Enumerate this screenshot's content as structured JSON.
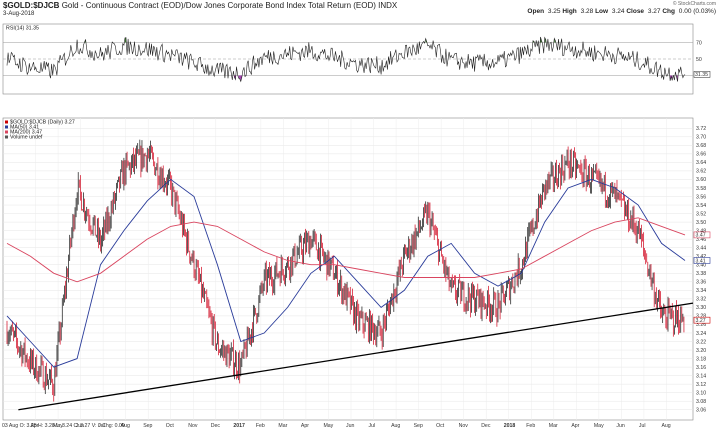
{
  "header": {
    "symbol": "$GOLD:$DJCB",
    "description": "Gold - Continuous Contract (EOD)/Dow Jones Corporate Bond Index Total Return (EOD)",
    "exchange": "INDX",
    "date": "3-Aug-2018",
    "open_label": "Open",
    "open": "3.25",
    "high_label": "High",
    "high": "3.28",
    "low_label": "Low",
    "low": "3.24",
    "close_label": "Close",
    "close": "3.27",
    "chg_label": "Chg",
    "chg": "0.00 (0.03%)",
    "credit": "© StockCharts.com"
  },
  "rsi_panel": {
    "label": "RSI(14) 31.35",
    "levels": [
      "70",
      "50",
      "30"
    ],
    "last_value": "31.35"
  },
  "price_panel": {
    "legend": [
      {
        "text": "$GOLD:$DJCB (Daily) 3.27",
        "color": "#cc0000",
        "icon": "price-line-icon"
      },
      {
        "text": "MA(50) 3.41",
        "color": "#2a3c9a",
        "icon": "ma50-line-icon"
      },
      {
        "text": "MA(200) 3.47",
        "color": "#d9455f",
        "icon": "ma200-line-icon"
      },
      {
        "text": "Volume undef",
        "color": "#555555",
        "icon": "volume-icon"
      }
    ],
    "yticks": [
      "3.72",
      "3.70",
      "3.68",
      "3.66",
      "3.64",
      "3.62",
      "3.60",
      "3.58",
      "3.56",
      "3.54",
      "3.52",
      "3.50",
      "3.48",
      "3.46",
      "3.44",
      "3.42",
      "3.40",
      "3.38",
      "3.36",
      "3.34",
      "3.32",
      "3.30",
      "3.28",
      "3.26",
      "3.24",
      "3.22",
      "3.20",
      "3.18",
      "3.16",
      "3.14",
      "3.12",
      "3.10",
      "3.08",
      "3.06"
    ],
    "xticks": [
      "Apr",
      "May",
      "Jun",
      "Jul",
      "Aug",
      "Sep",
      "Oct",
      "Nov",
      "Dec",
      "2017",
      "Feb",
      "Mar",
      "Apr",
      "May",
      "Jun",
      "Jul",
      "Aug",
      "Sep",
      "Oct",
      "Nov",
      "Dec",
      "2018",
      "Feb",
      "Mar",
      "Apr",
      "May",
      "Jun",
      "Jul",
      "Aug"
    ],
    "bottom_quote": "03 Aug O: 3.25 H: 3.28 L: 3.24 C: 3.27 V: 0 Chg: 0.00"
  },
  "chart_data": {
    "type": "line",
    "title": "$GOLD:$DJCB (Daily)",
    "ylim": [
      3.05,
      3.73
    ],
    "grid": true,
    "x": [
      "Mar 2016",
      "Apr",
      "May",
      "Jun",
      "Jul",
      "Aug",
      "Sep",
      "Oct",
      "Nov",
      "Dec",
      "2017",
      "Feb",
      "Mar",
      "Apr",
      "May",
      "Jun",
      "Jul",
      "Aug",
      "Sep",
      "Oct",
      "Nov",
      "Dec",
      "2018",
      "Feb",
      "Mar",
      "Apr",
      "May",
      "Jun",
      "Jul",
      "Aug"
    ],
    "series": [
      {
        "name": "$GOLD:$DJCB",
        "values": [
          3.25,
          3.17,
          3.12,
          3.58,
          3.45,
          3.62,
          3.66,
          3.58,
          3.4,
          3.21,
          3.16,
          3.36,
          3.4,
          3.46,
          3.38,
          3.27,
          3.24,
          3.42,
          3.52,
          3.34,
          3.32,
          3.3,
          3.4,
          3.58,
          3.64,
          3.6,
          3.56,
          3.48,
          3.28,
          3.27
        ]
      },
      {
        "name": "MA(50)",
        "values": [
          3.28,
          3.22,
          3.16,
          3.18,
          3.4,
          3.48,
          3.55,
          3.6,
          3.56,
          3.4,
          3.22,
          3.24,
          3.3,
          3.38,
          3.42,
          3.36,
          3.3,
          3.34,
          3.42,
          3.45,
          3.38,
          3.35,
          3.38,
          3.5,
          3.58,
          3.6,
          3.58,
          3.54,
          3.45,
          3.41
        ]
      },
      {
        "name": "MA(200)",
        "values": [
          3.45,
          3.42,
          3.38,
          3.36,
          3.38,
          3.42,
          3.46,
          3.49,
          3.5,
          3.49,
          3.46,
          3.43,
          3.41,
          3.4,
          3.4,
          3.39,
          3.38,
          3.37,
          3.37,
          3.37,
          3.37,
          3.38,
          3.39,
          3.42,
          3.45,
          3.48,
          3.5,
          3.51,
          3.49,
          3.47
        ]
      },
      {
        "name": "RSI(14)",
        "values": [
          50,
          40,
          35,
          68,
          55,
          66,
          62,
          55,
          45,
          35,
          33,
          52,
          56,
          60,
          52,
          44,
          42,
          58,
          66,
          48,
          45,
          46,
          56,
          68,
          64,
          58,
          55,
          48,
          35,
          31.35
        ]
      }
    ],
    "trendline": {
      "from": [
        "Apr 2016",
        3.06
      ],
      "to": [
        "Aug 2018",
        3.31
      ]
    },
    "rsi_levels": [
      70,
      50,
      30
    ]
  }
}
